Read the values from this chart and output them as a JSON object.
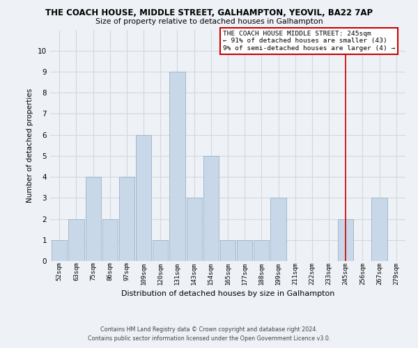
{
  "title": "THE COACH HOUSE, MIDDLE STREET, GALHAMPTON, YEOVIL, BA22 7AP",
  "subtitle": "Size of property relative to detached houses in Galhampton",
  "xlabel": "Distribution of detached houses by size in Galhampton",
  "ylabel": "Number of detached properties",
  "bar_labels": [
    "52sqm",
    "63sqm",
    "75sqm",
    "86sqm",
    "97sqm",
    "109sqm",
    "120sqm",
    "131sqm",
    "143sqm",
    "154sqm",
    "165sqm",
    "177sqm",
    "188sqm",
    "199sqm",
    "211sqm",
    "222sqm",
    "233sqm",
    "245sqm",
    "256sqm",
    "267sqm",
    "279sqm"
  ],
  "bar_values": [
    1,
    2,
    4,
    2,
    4,
    6,
    1,
    9,
    3,
    5,
    1,
    1,
    1,
    3,
    0,
    0,
    0,
    2,
    0,
    3,
    0
  ],
  "bar_color": "#c8d8e8",
  "bar_edgecolor": "#a0b8cc",
  "vline_x_index": 17,
  "vline_color": "#cc0000",
  "ylim": [
    0,
    11
  ],
  "yticks": [
    0,
    1,
    2,
    3,
    4,
    5,
    6,
    7,
    8,
    9,
    10,
    11
  ],
  "grid_color": "#d0d8e0",
  "background_color": "#eef2f6",
  "annotation_text": "THE COACH HOUSE MIDDLE STREET: 245sqm\n← 91% of detached houses are smaller (43)\n9% of semi-detached houses are larger (4) →",
  "footer1": "Contains HM Land Registry data © Crown copyright and database right 2024.",
  "footer2": "Contains public sector information licensed under the Open Government Licence v3.0."
}
